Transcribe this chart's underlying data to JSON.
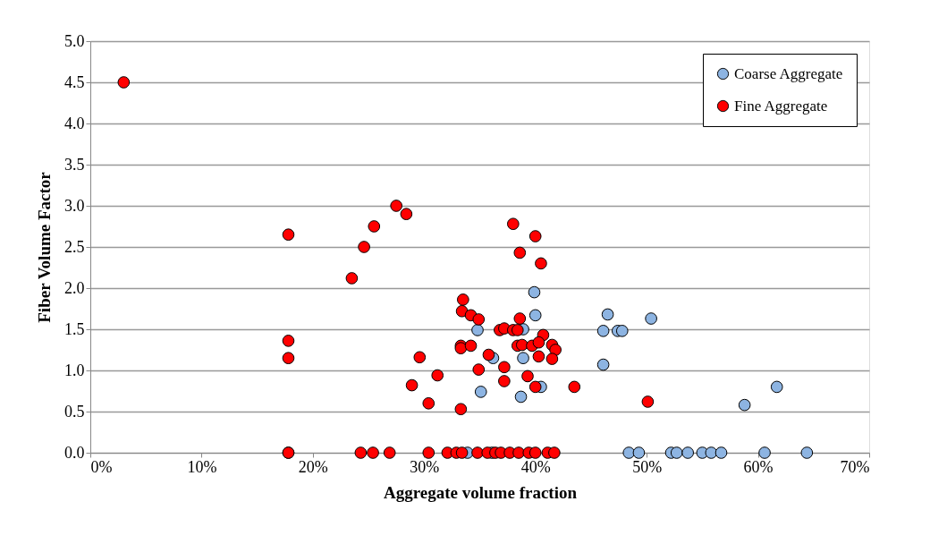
{
  "chart_data": {
    "type": "scatter",
    "xlabel": "Aggregate volume fraction",
    "ylabel": "Fiber Volume Factor",
    "xlim": [
      0,
      70
    ],
    "ylim": [
      0,
      5
    ],
    "xticks": [
      {
        "value": 0,
        "label": "0%"
      },
      {
        "value": 10,
        "label": "10%"
      },
      {
        "value": 20,
        "label": "20%"
      },
      {
        "value": 30,
        "label": "30%"
      },
      {
        "value": 40,
        "label": "40%"
      },
      {
        "value": 50,
        "label": "50%"
      },
      {
        "value": 60,
        "label": "60%"
      },
      {
        "value": 70,
        "label": "70%"
      }
    ],
    "yticks": [
      {
        "value": 0,
        "label": "0.0"
      },
      {
        "value": 0.5,
        "label": "0.5"
      },
      {
        "value": 1,
        "label": "1.0"
      },
      {
        "value": 1.5,
        "label": "1.5"
      },
      {
        "value": 2,
        "label": "2.0"
      },
      {
        "value": 2.5,
        "label": "2.5"
      },
      {
        "value": 3,
        "label": "3.0"
      },
      {
        "value": 3.5,
        "label": "3.5"
      },
      {
        "value": 4,
        "label": "4.0"
      },
      {
        "value": 4.5,
        "label": "4.5"
      },
      {
        "value": 5,
        "label": "5.0"
      }
    ],
    "grid": "y",
    "legend": "top right",
    "marker": "circle",
    "series": [
      {
        "name": "Coarse Aggregate",
        "color": "#8db4e2",
        "x": [
          39.9,
          40.0,
          34.8,
          38.9,
          38.9,
          36.2,
          35.1,
          38.7,
          40.5,
          46.5,
          46.1,
          47.4,
          47.8,
          50.4,
          46.1,
          58.8,
          61.7,
          33.9,
          36.1,
          48.4,
          49.3,
          52.2,
          52.7,
          53.7,
          55.0,
          55.8,
          56.7,
          60.6,
          64.4
        ],
        "values": [
          1.95,
          1.67,
          1.49,
          1.5,
          1.15,
          1.15,
          0.74,
          0.68,
          0.8,
          1.68,
          1.48,
          1.48,
          1.48,
          1.63,
          1.07,
          0.58,
          0.8,
          0,
          0,
          0,
          0,
          0,
          0,
          0,
          0,
          0,
          0,
          0,
          0
        ]
      },
      {
        "name": "Fine Aggregate",
        "color": "#ff0000",
        "x": [
          3.0,
          17.8,
          17.8,
          17.8,
          17.8,
          25.5,
          24.6,
          23.5,
          27.5,
          28.4,
          29.6,
          31.2,
          28.9,
          30.4,
          33.3,
          33.5,
          33.4,
          34.2,
          34.9,
          33.3,
          33.3,
          34.2,
          34.9,
          38.0,
          40.0,
          38.6,
          40.5,
          38.6,
          36.8,
          37.2,
          38.0,
          38.4,
          40.7,
          38.4,
          38.8,
          39.7,
          40.3,
          41.5,
          41.8,
          41.5,
          40.3,
          35.8,
          37.2,
          37.2,
          39.3,
          40.0,
          43.5,
          50.1,
          17.8,
          24.3,
          25.4,
          26.9,
          30.4,
          32.1,
          32.9,
          33.4,
          34.8,
          35.7,
          36.4,
          36.9,
          37.7,
          38.5,
          39.4,
          40.0,
          41.1,
          41.7
        ],
        "values": [
          4.5,
          2.65,
          1.36,
          1.15,
          0,
          2.75,
          2.5,
          2.12,
          3.0,
          2.9,
          1.16,
          0.94,
          0.82,
          0.6,
          0.53,
          1.86,
          1.72,
          1.67,
          1.62,
          1.3,
          1.27,
          1.3,
          1.01,
          2.78,
          2.63,
          2.43,
          2.3,
          1.63,
          1.49,
          1.51,
          1.49,
          1.49,
          1.43,
          1.3,
          1.31,
          1.3,
          1.34,
          1.31,
          1.25,
          1.14,
          1.17,
          1.19,
          1.04,
          0.87,
          0.93,
          0.8,
          0.8,
          0.62,
          0,
          0,
          0,
          0,
          0,
          0,
          0,
          0,
          0,
          0,
          0,
          0,
          0,
          0,
          0,
          0,
          0,
          0
        ]
      }
    ]
  }
}
